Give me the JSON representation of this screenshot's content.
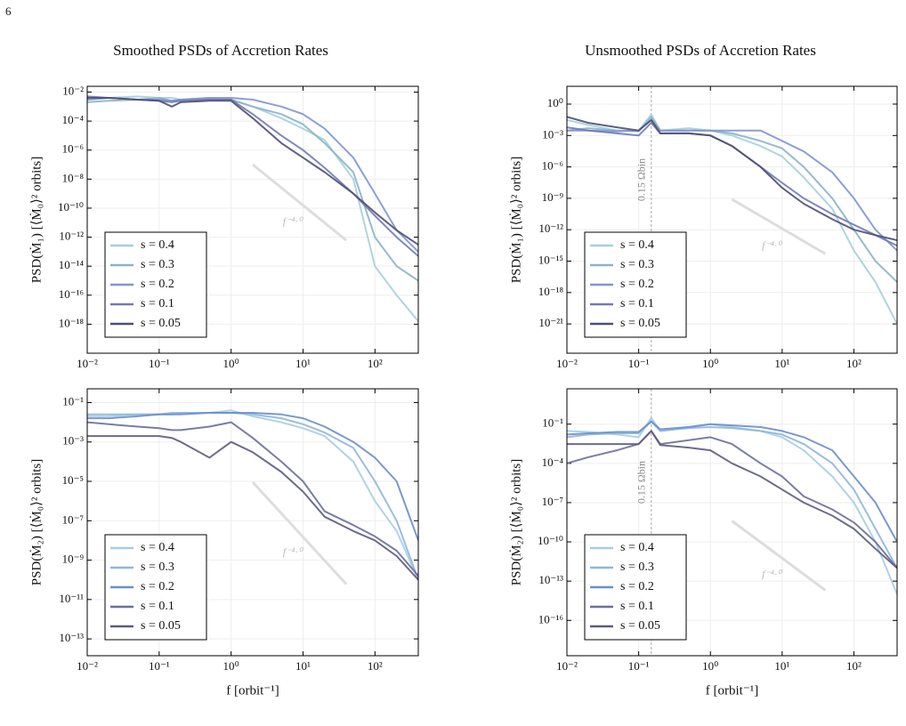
{
  "page_number": "6",
  "chart_data": [
    {
      "type": "line",
      "title": "Smoothed PSDs of Accretion Rates",
      "ylabel": "PSD(Ṁ₁)  [⟨Ṁ₀⟩² orbits]",
      "log_x": true,
      "log_y": true,
      "grid": true,
      "legend": "lower left",
      "xlim": [
        0.01,
        400
      ],
      "ylim": [
        1e-20,
        0.025
      ],
      "xticks": [
        {
          "value": 0.01,
          "label": "10⁻²"
        },
        {
          "value": 0.1,
          "label": "10⁻¹"
        },
        {
          "value": 1,
          "label": "10⁰"
        },
        {
          "value": 10,
          "label": "10¹"
        },
        {
          "value": 100,
          "label": "10²"
        }
      ],
      "yticks": [
        {
          "value": 0.01,
          "label": "10⁻²"
        },
        {
          "value": 0.0001,
          "label": "10⁻⁴"
        },
        {
          "value": 1e-06,
          "label": "10⁻⁶"
        },
        {
          "value": 1e-08,
          "label": "10⁻⁸"
        },
        {
          "value": 1e-10,
          "label": "10⁻¹⁰"
        },
        {
          "value": 1e-12,
          "label": "10⁻¹²"
        },
        {
          "value": 1e-14,
          "label": "10⁻¹⁴"
        },
        {
          "value": 1e-16,
          "label": "10⁻¹⁶"
        },
        {
          "value": 1e-18,
          "label": "10⁻¹⁸"
        }
      ],
      "x": [
        0.01,
        0.02,
        0.05,
        0.1,
        0.15,
        0.2,
        0.5,
        1,
        2,
        5,
        10,
        20,
        50,
        100,
        200,
        400
      ],
      "series": [
        {
          "name": "s = 0.4",
          "color": "#a6cfdd",
          "values": [
            0.003,
            0.004,
            0.005,
            0.004,
            0.004,
            0.003,
            0.004,
            0.003,
            0.001,
            0.00016,
            3e-05,
            5e-06,
            1e-08,
            1e-14,
            1e-16,
            1.6e-18
          ]
        },
        {
          "name": "s = 0.3",
          "color": "#8ab4c6",
          "values": [
            0.002,
            0.0025,
            0.003,
            0.004,
            0.0025,
            0.003,
            0.003,
            0.003,
            0.001,
            0.0003,
            6e-05,
            3e-06,
            3e-08,
            1e-12,
            1e-14,
            1e-15
          ]
        },
        {
          "name": "s = 0.2",
          "color": "#7f95cf",
          "values": [
            0.003,
            0.004,
            0.003,
            0.003,
            0.0025,
            0.003,
            0.004,
            0.004,
            0.003,
            0.001,
            0.0003,
            3e-05,
            3e-07,
            1e-09,
            3e-12,
            1e-13
          ]
        },
        {
          "name": "s = 0.1",
          "color": "#7279b5",
          "values": [
            0.005,
            0.004,
            0.003,
            0.0025,
            0.002,
            0.0025,
            0.003,
            0.003,
            0.0003,
            1e-05,
            1e-06,
            6e-08,
            1e-09,
            3e-11,
            1e-12,
            5e-14
          ]
        },
        {
          "name": "s = 0.05",
          "color": "#4e4f70",
          "values": [
            0.004,
            0.004,
            0.003,
            0.0025,
            0.001,
            0.002,
            0.0025,
            0.0025,
            0.00016,
            3e-06,
            3e-07,
            3e-08,
            1e-09,
            5e-11,
            3e-12,
            3e-13
          ]
        }
      ],
      "reference_line": {
        "x": [
          2,
          40
        ],
        "y": [
          1e-07,
          6e-13
        ],
        "label": "f⁻⁴·⁰"
      }
    },
    {
      "type": "line",
      "title": "Unsmoothed PSDs of Accretion Rates",
      "ylabel": "PSD(Ṁ₁)  [⟨Ṁ₀⟩² orbits]",
      "log_x": true,
      "log_y": true,
      "grid": true,
      "legend": "lower left",
      "xlim": [
        0.01,
        400
      ],
      "ylim": [
        1.6e-24,
        50
      ],
      "xticks": [
        {
          "value": 0.01,
          "label": "10⁻²"
        },
        {
          "value": 0.1,
          "label": "10⁻¹"
        },
        {
          "value": 1,
          "label": "10⁰"
        },
        {
          "value": 10,
          "label": "10¹"
        },
        {
          "value": 100,
          "label": "10²"
        }
      ],
      "yticks": [
        {
          "value": 1,
          "label": "10⁰"
        },
        {
          "value": 0.001,
          "label": "10⁻³"
        },
        {
          "value": 1e-06,
          "label": "10⁻⁶"
        },
        {
          "value": 1e-09,
          "label": "10⁻⁹"
        },
        {
          "value": 1e-12,
          "label": "10⁻¹²"
        },
        {
          "value": 1e-15,
          "label": "10⁻¹⁵"
        },
        {
          "value": 1e-18,
          "label": "10⁻¹⁸"
        },
        {
          "value": 1e-21,
          "label": "10⁻²¹"
        }
      ],
      "x": [
        0.01,
        0.02,
        0.05,
        0.1,
        0.15,
        0.2,
        0.5,
        1,
        2,
        5,
        10,
        20,
        50,
        100,
        200,
        400
      ],
      "series": [
        {
          "name": "s = 0.4",
          "color": "#a6cfdd",
          "values": [
            0.03,
            0.01,
            0.003,
            0.003,
            0.1,
            0.003,
            0.005,
            0.003,
            0.001,
            0.0001,
            1e-05,
            1e-07,
            1e-10,
            1e-14,
            1e-17,
            1e-21
          ]
        },
        {
          "name": "s = 0.3",
          "color": "#8ab4c6",
          "values": [
            0.003,
            0.005,
            0.003,
            0.0025,
            0.06,
            0.003,
            0.003,
            0.003,
            0.0016,
            0.0003,
            6e-05,
            1e-06,
            1e-09,
            1e-12,
            1e-15,
            1e-17
          ]
        },
        {
          "name": "s = 0.2",
          "color": "#7f95cf",
          "values": [
            0.003,
            0.003,
            0.0025,
            0.003,
            0.03,
            0.003,
            0.003,
            0.003,
            0.003,
            0.003,
            0.0003,
            3e-05,
            3e-07,
            1e-09,
            1e-12,
            1e-14
          ]
        },
        {
          "name": "s = 0.1",
          "color": "#7279b5",
          "values": [
            0.006,
            0.003,
            0.0016,
            0.001,
            0.016,
            0.0016,
            0.0016,
            0.001,
            0.0001,
            1e-06,
            3e-08,
            1e-09,
            3e-11,
            3e-12,
            3e-13,
            3e-14
          ]
        },
        {
          "name": "s = 0.05",
          "color": "#4e4f70",
          "values": [
            0.06,
            0.016,
            0.006,
            0.003,
            0.03,
            0.0016,
            0.0016,
            0.001,
            0.0001,
            1e-06,
            1e-08,
            3e-10,
            1e-11,
            1e-12,
            3e-13,
            1e-13
          ]
        }
      ],
      "vline": {
        "x": 0.15,
        "label": "0.15 Ωbin"
      },
      "reference_line": {
        "x": [
          2,
          40
        ],
        "y": [
          8e-10,
          5e-15
        ],
        "label": "f⁻⁴·⁰"
      }
    },
    {
      "type": "line",
      "ylabel": "PSD(Ṁ₂)  [⟨Ṁ₀⟩² orbits]",
      "xlabel": "f [orbit⁻¹]",
      "log_x": true,
      "log_y": true,
      "grid": true,
      "legend": "lower left",
      "xlim": [
        0.01,
        400
      ],
      "ylim": [
        1.4e-14,
        0.5
      ],
      "xticks": [
        {
          "value": 0.01,
          "label": "10⁻²"
        },
        {
          "value": 0.1,
          "label": "10⁻¹"
        },
        {
          "value": 1,
          "label": "10⁰"
        },
        {
          "value": 10,
          "label": "10¹"
        },
        {
          "value": 100,
          "label": "10²"
        }
      ],
      "yticks": [
        {
          "value": 0.1,
          "label": "10⁻¹"
        },
        {
          "value": 0.001,
          "label": "10⁻³"
        },
        {
          "value": 1e-05,
          "label": "10⁻⁵"
        },
        {
          "value": 1e-07,
          "label": "10⁻⁷"
        },
        {
          "value": 1e-09,
          "label": "10⁻⁹"
        },
        {
          "value": 1e-11,
          "label": "10⁻¹¹"
        },
        {
          "value": 1e-13,
          "label": "10⁻¹³"
        }
      ],
      "x": [
        0.01,
        0.02,
        0.05,
        0.1,
        0.15,
        0.2,
        0.5,
        1,
        2,
        5,
        10,
        20,
        50,
        100,
        200,
        400
      ],
      "series": [
        {
          "name": "s = 0.4",
          "color": "#a8cde2",
          "values": [
            0.02,
            0.02,
            0.025,
            0.025,
            0.025,
            0.03,
            0.03,
            0.04,
            0.02,
            0.01,
            0.005,
            0.002,
            0.0001,
            1e-06,
            3e-08,
            1e-10
          ]
        },
        {
          "name": "s = 0.3",
          "color": "#8fb6dc",
          "values": [
            0.025,
            0.025,
            0.025,
            0.025,
            0.03,
            0.03,
            0.03,
            0.03,
            0.025,
            0.016,
            0.008,
            0.003,
            0.0005,
            1e-05,
            1e-07,
            1e-10
          ]
        },
        {
          "name": "s = 0.2",
          "color": "#6b8ecb",
          "values": [
            0.016,
            0.016,
            0.02,
            0.025,
            0.025,
            0.025,
            0.03,
            0.03,
            0.03,
            0.025,
            0.016,
            0.006,
            0.001,
            0.00016,
            1e-05,
            1e-08
          ]
        },
        {
          "name": "s = 0.1",
          "color": "#6a6f9a",
          "values": [
            0.01,
            0.008,
            0.006,
            0.005,
            0.004,
            0.004,
            0.006,
            0.01,
            0.0016,
            0.0001,
            1e-05,
            3e-07,
            6e-08,
            1.6e-08,
            3e-09,
            1.6e-10
          ]
        },
        {
          "name": "s = 0.05",
          "color": "#5d5c7c",
          "values": [
            0.002,
            0.002,
            0.002,
            0.002,
            0.0016,
            0.001,
            0.00016,
            0.001,
            0.0003,
            3e-05,
            3e-06,
            1.6e-07,
            3e-08,
            1e-08,
            1.6e-09,
            1e-10
          ]
        }
      ],
      "reference_line": {
        "x": [
          2,
          40
        ],
        "y": [
          9e-06,
          6e-11
        ],
        "label": "f⁻⁴·⁰"
      }
    },
    {
      "type": "line",
      "ylabel": "PSD(Ṁ₂)  [⟨Ṁ₀⟩² orbits]",
      "xlabel": "f [orbit⁻¹]",
      "log_x": true,
      "log_y": true,
      "grid": true,
      "legend": "lower left",
      "xlim": [
        0.01,
        400
      ],
      "ylim": [
        2e-19,
        50
      ],
      "xticks": [
        {
          "value": 0.01,
          "label": "10⁻²"
        },
        {
          "value": 0.1,
          "label": "10⁻¹"
        },
        {
          "value": 1,
          "label": "10⁰"
        },
        {
          "value": 10,
          "label": "10¹"
        },
        {
          "value": 100,
          "label": "10²"
        }
      ],
      "yticks": [
        {
          "value": 0.1,
          "label": "10⁻¹"
        },
        {
          "value": 0.0001,
          "label": "10⁻⁴"
        },
        {
          "value": 1e-07,
          "label": "10⁻⁷"
        },
        {
          "value": 1e-10,
          "label": "10⁻¹⁰"
        },
        {
          "value": 1e-13,
          "label": "10⁻¹³"
        },
        {
          "value": 1e-16,
          "label": "10⁻¹⁶"
        }
      ],
      "x": [
        0.01,
        0.02,
        0.05,
        0.1,
        0.15,
        0.2,
        0.5,
        1,
        2,
        5,
        10,
        20,
        50,
        100,
        200,
        400
      ],
      "series": [
        {
          "name": "s = 0.4",
          "color": "#a8cde2",
          "values": [
            0.03,
            0.025,
            0.016,
            0.01,
            0.3,
            0.03,
            0.06,
            0.1,
            0.06,
            0.03,
            0.01,
            0.001,
            1e-05,
            1e-07,
            1e-10,
            1e-14
          ]
        },
        {
          "name": "s = 0.3",
          "color": "#8fb6dc",
          "values": [
            0.01,
            0.016,
            0.02,
            0.02,
            0.16,
            0.03,
            0.05,
            0.06,
            0.05,
            0.03,
            0.016,
            0.003,
            0.0001,
            1e-06,
            1e-09,
            1e-12
          ]
        },
        {
          "name": "s = 0.2",
          "color": "#6b8ecb",
          "values": [
            0.016,
            0.02,
            0.025,
            0.025,
            0.16,
            0.04,
            0.06,
            0.1,
            0.08,
            0.06,
            0.03,
            0.01,
            0.001,
            1e-05,
            1e-07,
            1e-10
          ]
        },
        {
          "name": "s = 0.1",
          "color": "#6a6f9a",
          "values": [
            0.0001,
            0.0003,
            0.001,
            0.003,
            0.03,
            0.003,
            0.006,
            0.01,
            0.003,
            0.0001,
            1e-05,
            3e-07,
            3e-08,
            3e-09,
            1e-10,
            1e-12
          ]
        },
        {
          "name": "s = 0.05",
          "color": "#5d5c7c",
          "values": [
            0.003,
            0.003,
            0.003,
            0.003,
            0.03,
            0.0025,
            0.0016,
            0.001,
            0.0001,
            1e-05,
            1e-06,
            1e-07,
            1e-08,
            1e-09,
            3e-11,
            1e-12
          ]
        }
      ],
      "vline": {
        "x": 0.15,
        "label": "0.15 Ωbin"
      },
      "reference_line": {
        "x": [
          2,
          40
        ],
        "y": [
          4e-09,
          2e-14
        ],
        "label": "f⁻⁴·⁰"
      }
    }
  ]
}
